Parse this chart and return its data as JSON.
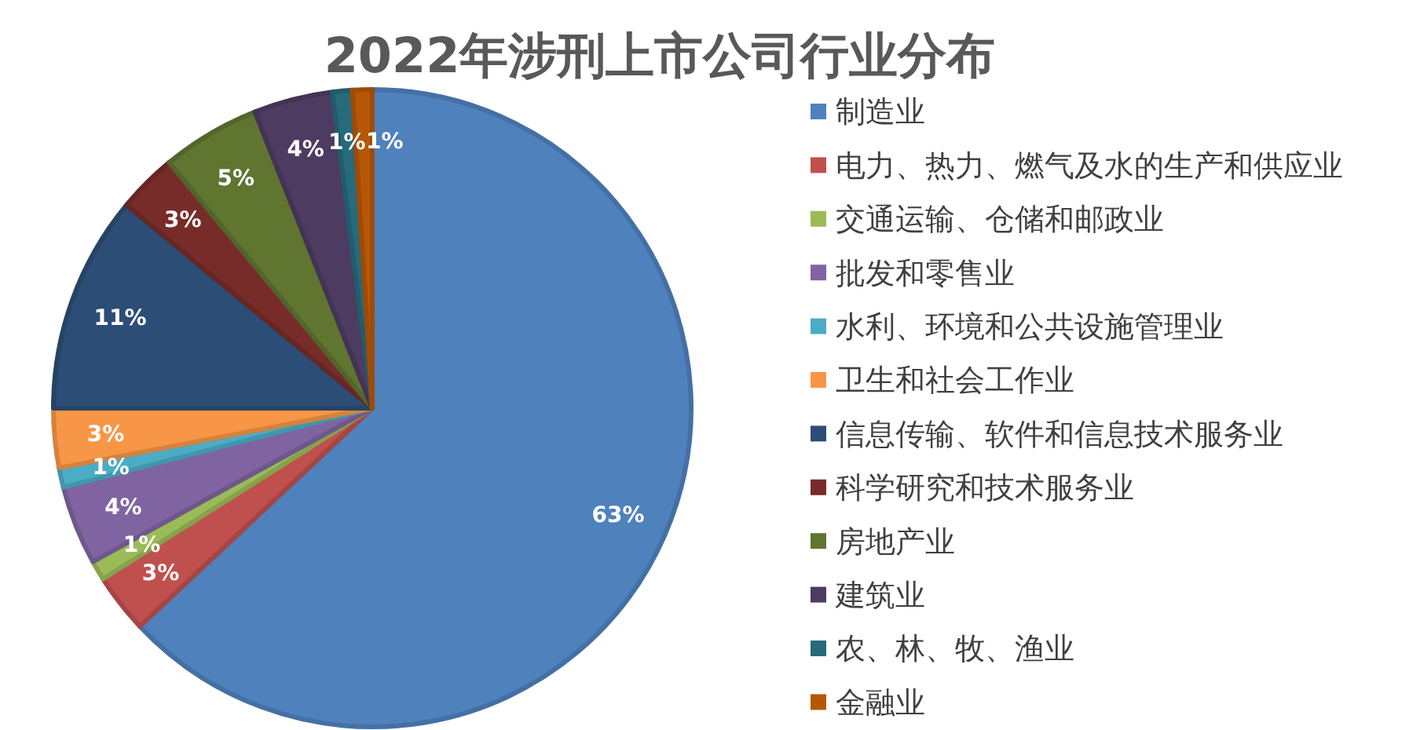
{
  "chart_data": {
    "type": "pie",
    "title": "2022年涉刑上市公司行业分布",
    "categories": [
      "制造业",
      "电力、热力、燃气及水的生产和供应业",
      "交通运输、仓储和邮政业",
      "批发和零售业",
      "水利、环境和公共设施管理业",
      "卫生和社会工作业",
      "信息传输、软件和信息技术服务业",
      "科学研究和技术服务业",
      "房地产业",
      "建筑业",
      "农、林、牧、渔业",
      "金融业"
    ],
    "values": [
      63,
      3,
      1,
      4,
      1,
      3,
      11,
      3,
      5,
      4,
      1,
      1
    ],
    "value_labels": [
      "63%",
      "3%",
      "1%",
      "4%",
      "1%",
      "3%",
      "11%",
      "3%",
      "5%",
      "4%",
      "1%",
      "1%"
    ],
    "colors": [
      "#4f81bd",
      "#c0504d",
      "#9bbb59",
      "#8064a2",
      "#4bacc6",
      "#f79646",
      "#2c4d75",
      "#772c2a",
      "#5f7530",
      "#4d3b62",
      "#276a7c",
      "#b65708"
    ],
    "legend": "right"
  }
}
